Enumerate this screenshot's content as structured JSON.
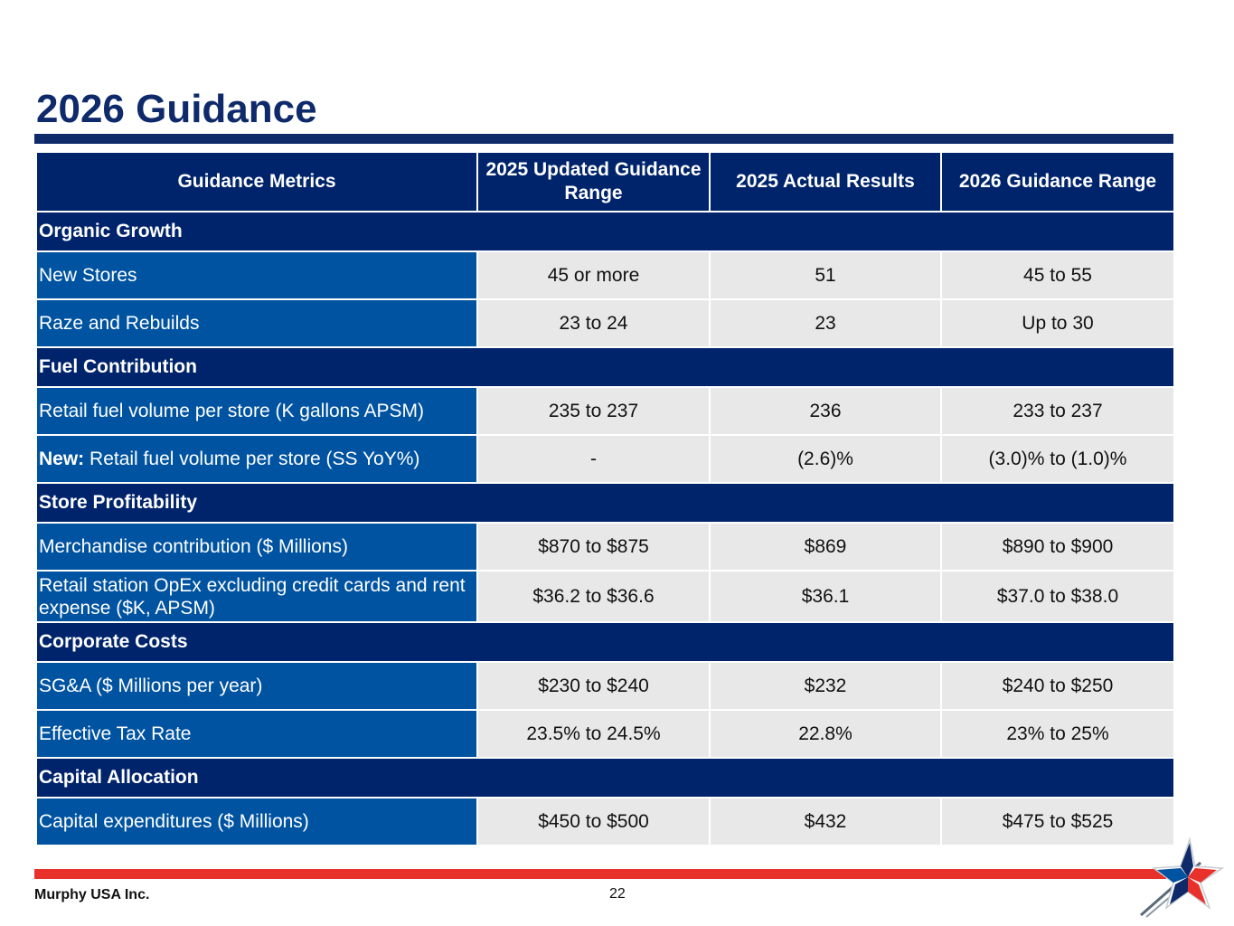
{
  "title": "2026 Guidance",
  "table": {
    "headers": [
      "Guidance Metrics",
      "2025 Updated Guidance Range",
      "2025 Actual Results",
      "2026 Guidance Range"
    ],
    "sections": [
      {
        "name": "Organic Growth",
        "rows": [
          {
            "prefix": "",
            "label": "New Stores",
            "updated": "45 or more",
            "actual": "51",
            "guidance": "45 to 55"
          },
          {
            "prefix": "",
            "label": "Raze and Rebuilds",
            "updated": "23 to 24",
            "actual": "23",
            "guidance": "Up to 30"
          }
        ]
      },
      {
        "name": "Fuel Contribution",
        "rows": [
          {
            "prefix": "",
            "label": "Retail fuel volume per store (K gallons APSM)",
            "updated": "235 to 237",
            "actual": "236",
            "guidance": "233 to 237"
          },
          {
            "prefix": "New:",
            "label": "Retail fuel volume per store (SS YoY%)",
            "updated": "-",
            "actual": "(2.6)%",
            "guidance": "(3.0)% to (1.0)%"
          }
        ]
      },
      {
        "name": "Store Profitability",
        "rows": [
          {
            "prefix": "",
            "label": "Merchandise contribution ($ Millions)",
            "updated": "$870 to $875",
            "actual": "$869",
            "guidance": "$890 to $900"
          },
          {
            "prefix": "",
            "label": "Retail station OpEx excluding credit cards and rent expense ($K, APSM)",
            "updated": "$36.2 to $36.6",
            "actual": "$36.1",
            "guidance": "$37.0 to $38.0"
          }
        ]
      },
      {
        "name": "Corporate Costs",
        "rows": [
          {
            "prefix": "",
            "label": "SG&A ($ Millions per year)",
            "updated": "$230 to $240",
            "actual": "$232",
            "guidance": "$240 to $250"
          },
          {
            "prefix": "",
            "label": "Effective Tax Rate",
            "updated": "23.5% to 24.5%",
            "actual": "22.8%",
            "guidance": "23% to 25%"
          }
        ]
      },
      {
        "name": "Capital Allocation",
        "rows": [
          {
            "prefix": "",
            "label": "Capital expenditures ($ Millions)",
            "updated": "$450 to $500",
            "actual": "$432",
            "guidance": "$475 to $525"
          }
        ]
      }
    ]
  },
  "footer": {
    "company": "Murphy USA Inc.",
    "page_number": "22"
  },
  "colors": {
    "title": "#0e2a6b",
    "header_bg": "#00246b",
    "label_bg": "#0053a0",
    "cell_bg": "#e8e8e8",
    "footer_bar": "#e8312a"
  },
  "logo_icon": "star-logo-icon"
}
